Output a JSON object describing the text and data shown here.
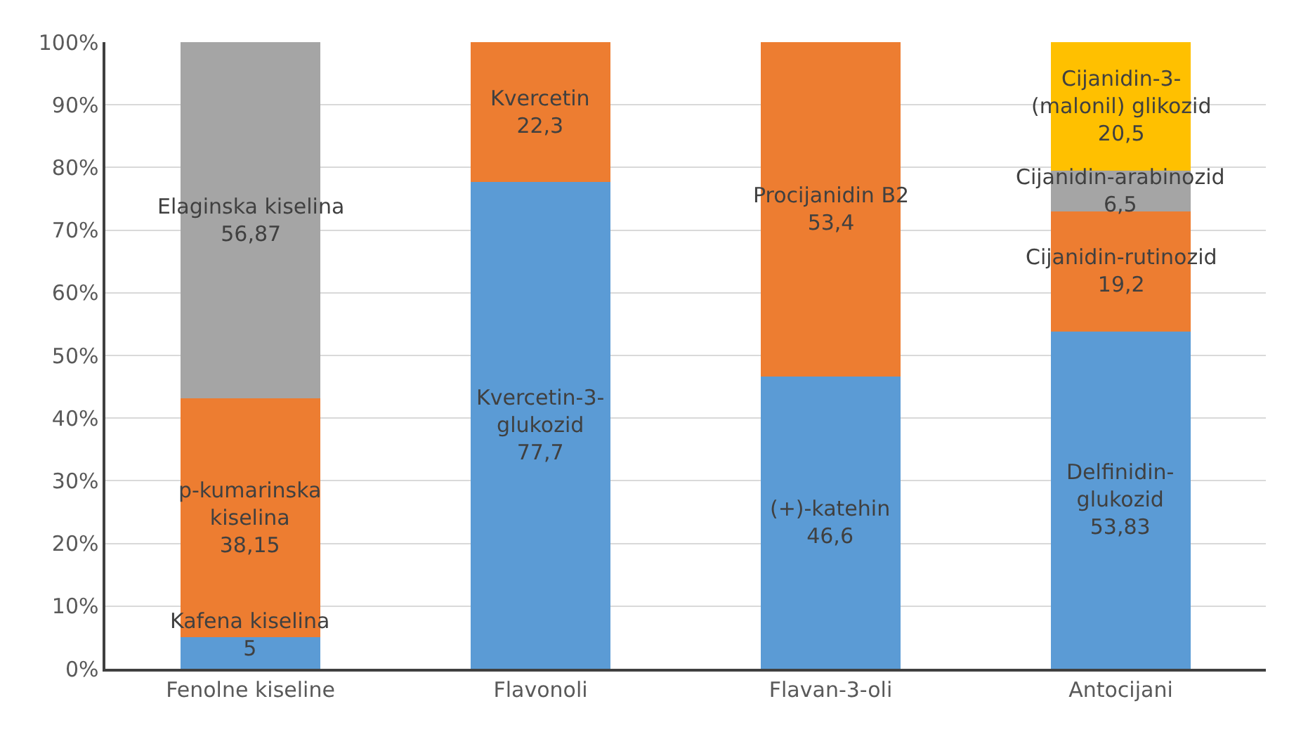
{
  "chart_data": {
    "type": "bar",
    "stacked": true,
    "categories": [
      "Fenolne kiseline",
      "Flavonoli",
      "Flavan-3-oli",
      "Antocijani"
    ],
    "ylim": [
      0,
      100
    ],
    "yticks": [
      {
        "value": 0,
        "label": "0%"
      },
      {
        "value": 10,
        "label": "10%"
      },
      {
        "value": 20,
        "label": "20%"
      },
      {
        "value": 30,
        "label": "30%"
      },
      {
        "value": 40,
        "label": "40%"
      },
      {
        "value": 50,
        "label": "50%"
      },
      {
        "value": 60,
        "label": "60%"
      },
      {
        "value": 70,
        "label": "70%"
      },
      {
        "value": 80,
        "label": "80%"
      },
      {
        "value": 90,
        "label": "90%"
      },
      {
        "value": 100,
        "label": "100%"
      }
    ],
    "grid": "y",
    "series": [
      {
        "color": "#5b9bd5",
        "values": [
          5,
          77.7,
          46.6,
          53.83
        ],
        "value_labels": [
          "Kafena kiselina\n5",
          "Kvercetin-3-\nglukozid\n77,7",
          "(+)-katehin\n46,6",
          "Delfinidin-\nglukozid\n53,83"
        ]
      },
      {
        "color": "#ed7d31",
        "values": [
          38.15,
          22.3,
          53.4,
          19.2
        ],
        "value_labels": [
          "p-kumarinska\nkiselina\n38,15",
          "Kvercetin\n22,3",
          "Procijanidin B2\n53,4",
          "Cijanidin-rutinozid\n19,2"
        ]
      },
      {
        "color": "#a5a5a5",
        "values": [
          56.87,
          null,
          null,
          6.5
        ],
        "value_labels": [
          "Elaginska kiselina\n56,87",
          null,
          null,
          "Cijanidin-arabinozid\n6,5"
        ]
      },
      {
        "color": "#ffc000",
        "values": [
          null,
          null,
          null,
          20.5
        ],
        "value_labels": [
          null,
          null,
          null,
          "Cijanidin-3-\n(malonil) glikozid\n20,5"
        ]
      }
    ]
  }
}
